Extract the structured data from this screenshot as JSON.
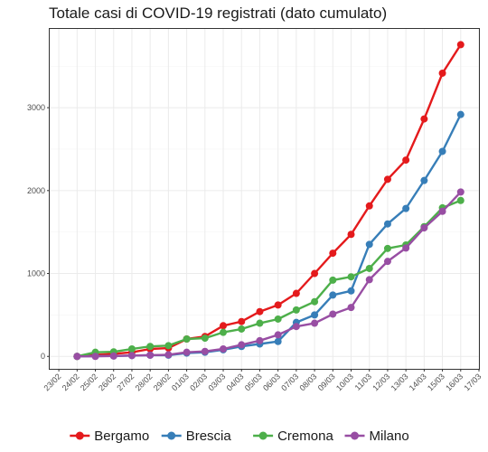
{
  "chart_data": {
    "type": "line",
    "title": "Totale casi di COVID-19 registrati (dato cumulato)",
    "xlabel": "",
    "ylabel": "",
    "x": [
      "24/02",
      "25/02",
      "26/02",
      "27/02",
      "28/02",
      "29/02",
      "01/03",
      "02/03",
      "03/03",
      "04/03",
      "05/03",
      "06/03",
      "07/03",
      "08/03",
      "09/03",
      "10/03",
      "11/03",
      "12/03",
      "13/03",
      "14/03",
      "15/03",
      "16/03"
    ],
    "x_tick_labels": [
      "23/02",
      "24/02",
      "25/02",
      "26/02",
      "27/02",
      "28/02",
      "29/02",
      "01/03",
      "02/03",
      "03/03",
      "04/03",
      "05/03",
      "06/03",
      "07/03",
      "08/03",
      "09/03",
      "10/03",
      "11/03",
      "12/03",
      "13/03",
      "14/03",
      "15/03",
      "16/03",
      "17/03"
    ],
    "y_ticks": [
      0,
      1000,
      2000,
      3000
    ],
    "ylim": [
      -150,
      3950
    ],
    "grid": true,
    "legend_position": "bottom",
    "series": [
      {
        "name": "Bergamo",
        "color": "#e41a1c",
        "values": [
          0,
          20,
          30,
          50,
          90,
          100,
          210,
          240,
          370,
          420,
          540,
          620,
          760,
          1000,
          1245,
          1472,
          1815,
          2136,
          2368,
          2864,
          3416,
          3760
        ]
      },
      {
        "name": "Brescia",
        "color": "#377eb8",
        "values": [
          0,
          5,
          5,
          10,
          15,
          15,
          40,
          50,
          80,
          120,
          150,
          180,
          410,
          500,
          740,
          790,
          1351,
          1598,
          1784,
          2122,
          2473,
          2918
        ]
      },
      {
        "name": "Cremona",
        "color": "#4daf4a",
        "values": [
          0,
          50,
          55,
          90,
          120,
          130,
          210,
          220,
          290,
          330,
          400,
          450,
          560,
          660,
          920,
          960,
          1061,
          1302,
          1344,
          1565,
          1792,
          1881
        ]
      },
      {
        "name": "Milano",
        "color": "#984ea3",
        "values": [
          0,
          0,
          5,
          10,
          15,
          20,
          50,
          60,
          90,
          140,
          190,
          260,
          360,
          400,
          510,
          590,
          925,
          1146,
          1307,
          1550,
          1750,
          1983
        ]
      }
    ]
  }
}
